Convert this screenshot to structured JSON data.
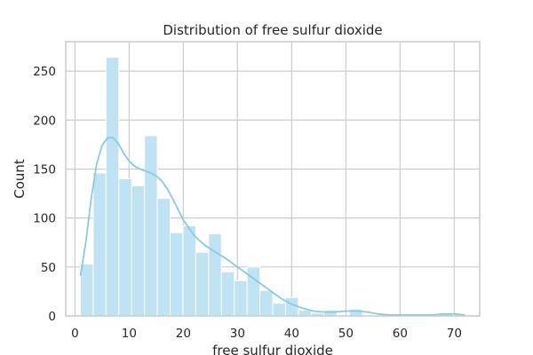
{
  "chart_data": {
    "type": "bar",
    "title": "Distribution of free sulfur dioxide",
    "xlabel": "free sulfur dioxide",
    "ylabel": "Count",
    "xlim": [
      -1.7,
      74.7
    ],
    "ylim": [
      0,
      280
    ],
    "xticks": [
      0,
      10,
      20,
      30,
      40,
      50,
      60,
      70
    ],
    "yticks": [
      0,
      50,
      100,
      150,
      200,
      250
    ],
    "grid": true,
    "bin_start": 1,
    "bin_width": 2.3667,
    "counts": [
      53,
      146,
      264,
      140,
      133,
      184,
      120,
      85,
      92,
      65,
      84,
      45,
      36,
      50,
      26,
      13,
      19,
      6,
      3,
      6,
      0,
      7,
      1,
      0,
      0,
      0,
      0,
      1,
      2,
      1
    ],
    "kde": {
      "x": [
        1,
        2,
        3,
        4,
        5,
        6,
        7,
        8,
        9,
        10,
        11,
        12,
        13,
        14,
        15,
        16,
        17,
        18,
        19,
        20,
        22,
        24,
        26,
        28,
        30,
        32,
        34,
        36,
        38,
        40,
        42,
        44,
        46,
        48,
        50,
        52,
        54,
        56,
        58,
        60,
        62,
        64,
        66,
        68,
        70,
        72
      ],
      "y": [
        41,
        75,
        120,
        155,
        174,
        182,
        182,
        176,
        166,
        158,
        153,
        150,
        148,
        146,
        143,
        138,
        130,
        120,
        109,
        98,
        82,
        72,
        65,
        58,
        50,
        42,
        34,
        26,
        18,
        12,
        8,
        5,
        4,
        4,
        5,
        5,
        4,
        2,
        1,
        1,
        1,
        1,
        1,
        2,
        2,
        1
      ]
    }
  }
}
